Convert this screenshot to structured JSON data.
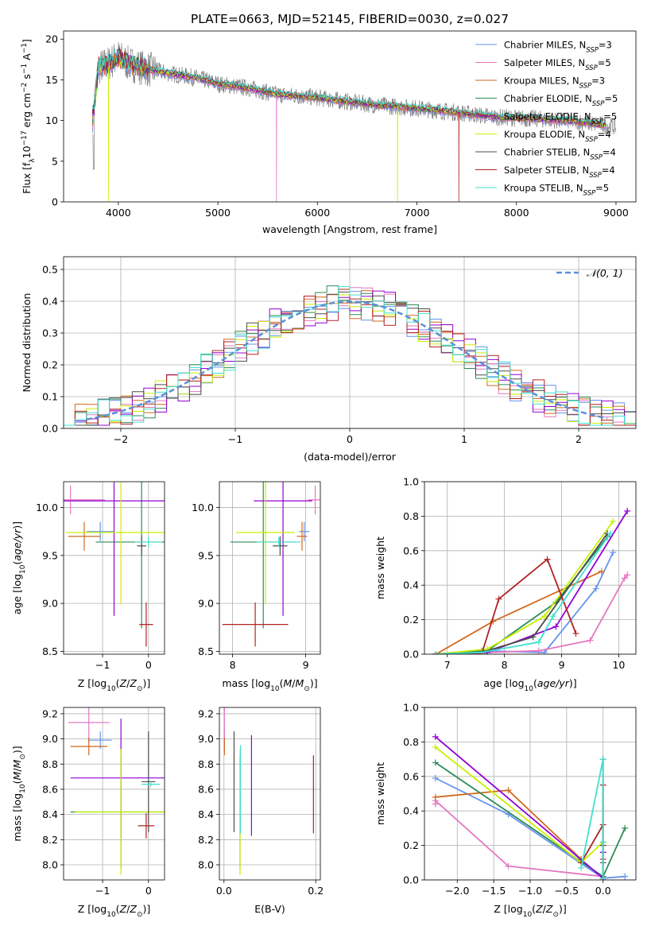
{
  "colors": {
    "chabrier_miles": "#6495ed",
    "salpeter_miles": "#e377c2",
    "kroupa_miles": "#d2691e",
    "chabrier_elodie": "#2e8b57",
    "salpeter_elodie": "#9400d3",
    "kroupa_elodie": "#c8f000",
    "chabrier_stelib": "#4d4d4d",
    "salpeter_stelib": "#b22222",
    "kroupa_stelib": "#40e0d0",
    "data_line": "#808080",
    "normal_curve": "#5b8fd9"
  },
  "chart_data": [
    {
      "id": "spectrum",
      "type": "line",
      "title": "PLATE=0663, MJD=52145, FIBERID=0030, z=0.027",
      "xlabel": "wavelength [Angstrom, rest frame]",
      "ylabel": "Flux [f_λ10^-17 erg cm^-2 s^-1 A^-1]",
      "xlim": [
        3450,
        9200
      ],
      "ylim": [
        0,
        21
      ],
      "xticks": [
        4000,
        5000,
        6000,
        7000,
        8000,
        9000
      ],
      "yticks": [
        0,
        5,
        10,
        15,
        20
      ],
      "grid": false,
      "legend_position": "top-right",
      "legend": [
        {
          "label": "Chabrier MILES, N",
          "sub": "SSP",
          "val": "=3",
          "color": "#6495ed"
        },
        {
          "label": "Salpeter MILES, N",
          "sub": "SSP",
          "val": "=5",
          "color": "#e377c2"
        },
        {
          "label": "Kroupa MILES, N",
          "sub": "SSP",
          "val": "=3",
          "color": "#d2691e"
        },
        {
          "label": "Chabrier ELODIE, N",
          "sub": "SSP",
          "val": "=5",
          "color": "#2e8b57"
        },
        {
          "label": "Salpeter ELODIE, N",
          "sub": "SSP",
          "val": "=5",
          "color": "#9400d3"
        },
        {
          "label": "Kroupa ELODIE, N",
          "sub": "SSP",
          "val": "=4",
          "color": "#c8f000"
        },
        {
          "label": "Chabrier STELIB, N",
          "sub": "SSP",
          "val": "=4",
          "color": "#4d4d4d"
        },
        {
          "label": "Salpeter STELIB, N",
          "sub": "SSP",
          "val": "=4",
          "color": "#b22222"
        },
        {
          "label": "Kroupa STELIB, N",
          "sub": "SSP",
          "val": "=5",
          "color": "#40e0d0"
        }
      ],
      "continuum": {
        "x": [
          3740,
          3800,
          3900,
          4000,
          4100,
          4300,
          4500,
          4800,
          5000,
          5300,
          5600,
          6000,
          6300,
          6600,
          7000,
          7400,
          7800,
          8200,
          8600,
          8900,
          9000
        ],
        "y": [
          10,
          16.5,
          17,
          17.8,
          17,
          16.3,
          15.8,
          15.2,
          14.5,
          14,
          13.2,
          12.8,
          12.3,
          11.9,
          11.5,
          11,
          10.4,
          10.2,
          9.9,
          9.4,
          9.2
        ]
      }
    },
    {
      "id": "residuals",
      "type": "histogram",
      "xlabel": "(data-model)/error",
      "ylabel": "Normed distribution",
      "xlim": [
        -2.5,
        2.5
      ],
      "ylim": [
        0,
        0.54
      ],
      "xticks": [
        -2,
        -1,
        0,
        1,
        2
      ],
      "yticks": [
        0.0,
        0.1,
        0.2,
        0.3,
        0.4,
        0.5
      ],
      "grid": true,
      "bin_width": 0.1,
      "legend_position": "top-right",
      "legend": [
        {
          "label": "𝒩(0, 1)",
          "color": "#5b8fd9"
        }
      ]
    },
    {
      "id": "age_vs_Z",
      "type": "errorbar",
      "xlabel": "Z [log10(Z/Z⊙)]",
      "ylabel": "age [log10(age/yr)]",
      "xlim": [
        -1.85,
        0.35
      ],
      "ylim": [
        8.47,
        10.27
      ],
      "xticks": [
        -1,
        0
      ],
      "yticks": [
        8.5,
        9.0,
        9.5,
        10.0
      ],
      "grid": true,
      "points": [
        {
          "model": "chabrier_miles",
          "x": -1.05,
          "xerr": 0.3,
          "y": 9.75,
          "yerr": 0.1
        },
        {
          "model": "salpeter_miles",
          "x": -1.7,
          "xerr": 0.75,
          "y": 10.08,
          "yerr": 0.15
        },
        {
          "model": "kroupa_miles",
          "x": -1.4,
          "xerr": 0.35,
          "y": 9.7,
          "yerr": 0.15
        },
        {
          "model": "chabrier_elodie",
          "x": -0.15,
          "xerr": 1.0,
          "y": 9.64,
          "yerr": 0.9
        },
        {
          "model": "salpeter_elodie",
          "x": -0.75,
          "xerr": 1.3,
          "y": 10.07,
          "yerr": 1.2
        },
        {
          "model": "kroupa_elodie",
          "x": -0.6,
          "xerr": 1.2,
          "y": 9.74,
          "yerr": 0.75
        },
        {
          "model": "chabrier_stelib",
          "x": -0.15,
          "xerr": 0.1,
          "y": 9.6,
          "yerr": 0.1
        },
        {
          "model": "salpeter_stelib",
          "x": -0.05,
          "xerr": 0.15,
          "y": 8.78,
          "yerr": 0.23
        },
        {
          "model": "kroupa_stelib",
          "x": 0.0,
          "xerr": 0.3,
          "y": 9.64,
          "yerr": 0.05
        }
      ]
    },
    {
      "id": "age_vs_mass",
      "type": "errorbar",
      "xlabel": "mass [log10(M/M⊙)]",
      "ylabel": "",
      "xlim": [
        7.82,
        9.2
      ],
      "ylim": [
        8.47,
        10.27
      ],
      "xticks": [
        8,
        9
      ],
      "yticks": [
        8.5,
        9.0,
        9.5,
        10.0
      ],
      "grid": true,
      "points": [
        {
          "model": "chabrier_miles",
          "x": 8.98,
          "xerr": 0.07,
          "y": 9.75,
          "yerr": 0.1
        },
        {
          "model": "salpeter_miles",
          "x": 9.13,
          "xerr": 0.1,
          "y": 10.08,
          "yerr": 0.15
        },
        {
          "model": "kroupa_miles",
          "x": 8.95,
          "xerr": 0.07,
          "y": 9.7,
          "yerr": 0.15
        },
        {
          "model": "chabrier_elodie",
          "x": 8.42,
          "xerr": 0.45,
          "y": 9.64,
          "yerr": 0.9
        },
        {
          "model": "salpeter_elodie",
          "x": 8.69,
          "xerr": 0.4,
          "y": 10.07,
          "yerr": 1.2
        },
        {
          "model": "kroupa_elodie",
          "x": 8.45,
          "xerr": 0.4,
          "y": 9.74,
          "yerr": 0.75
        },
        {
          "model": "chabrier_stelib",
          "x": 8.65,
          "xerr": 0.1,
          "y": 9.6,
          "yerr": 0.1
        },
        {
          "model": "salpeter_stelib",
          "x": 8.31,
          "xerr": 0.45,
          "y": 8.78,
          "yerr": 0.23
        },
        {
          "model": "kroupa_stelib",
          "x": 8.63,
          "xerr": 0.3,
          "y": 9.64,
          "yerr": 0.05
        }
      ]
    },
    {
      "id": "weight_vs_age",
      "type": "line",
      "xlabel": "age [log10(age/yr)]",
      "ylabel": "mass weight",
      "xlim": [
        6.6,
        10.3
      ],
      "ylim": [
        0,
        1
      ],
      "xticks": [
        7,
        8,
        9,
        10
      ],
      "yticks": [
        0.0,
        0.2,
        0.4,
        0.6,
        0.8,
        1.0
      ],
      "grid": true,
      "series": [
        {
          "model": "chabrier_miles",
          "x": [
            6.8,
            7.6,
            8.7,
            9.6,
            9.9
          ],
          "y": [
            0.0,
            0.02,
            0.01,
            0.38,
            0.59
          ]
        },
        {
          "model": "salpeter_miles",
          "x": [
            6.8,
            7.7,
            8.6,
            9.5,
            10.1,
            10.15
          ],
          "y": [
            0.0,
            0.01,
            0.02,
            0.08,
            0.44,
            0.46
          ]
        },
        {
          "model": "kroupa_miles",
          "x": [
            6.8,
            7.8,
            9.7
          ],
          "y": [
            0.0,
            0.19,
            0.48
          ]
        },
        {
          "model": "chabrier_elodie",
          "x": [
            6.8,
            7.7,
            8.9,
            9.8
          ],
          "y": [
            0.0,
            0.02,
            0.3,
            0.68
          ]
        },
        {
          "model": "salpeter_elodie",
          "x": [
            6.8,
            7.7,
            8.9,
            10.15
          ],
          "y": [
            0.0,
            0.01,
            0.16,
            0.83
          ]
        },
        {
          "model": "kroupa_elodie",
          "x": [
            6.8,
            7.7,
            8.7,
            9.9
          ],
          "y": [
            0.0,
            0.03,
            0.22,
            0.77
          ]
        },
        {
          "model": "chabrier_stelib",
          "x": [
            6.8,
            7.6,
            8.5,
            9.8
          ],
          "y": [
            0.0,
            0.01,
            0.1,
            0.7
          ]
        },
        {
          "model": "salpeter_stelib",
          "x": [
            6.8,
            7.6,
            7.9,
            8.75,
            9.25
          ],
          "y": [
            0.0,
            0.0,
            0.32,
            0.55,
            0.12
          ]
        },
        {
          "model": "kroupa_stelib",
          "x": [
            6.8,
            7.6,
            8.6,
            8.85,
            9.85
          ],
          "y": [
            0.0,
            0.01,
            0.07,
            0.22,
            0.7
          ]
        }
      ]
    },
    {
      "id": "mass_vs_Z",
      "type": "errorbar",
      "xlabel": "Z [log10(Z/Z⊙)]",
      "ylabel": "mass [log10(M/M⊙)]",
      "xlim": [
        -1.85,
        0.35
      ],
      "ylim": [
        7.88,
        9.25
      ],
      "xticks": [
        -1,
        0
      ],
      "yticks": [
        8.0,
        8.2,
        8.4,
        8.6,
        8.8,
        9.0,
        9.2
      ],
      "grid": true,
      "points": [
        {
          "model": "chabrier_miles",
          "x": -1.05,
          "xerr": 0.25,
          "y": 8.99,
          "yerr": 0.07
        },
        {
          "model": "salpeter_miles",
          "x": -1.3,
          "xerr": 0.45,
          "y": 9.13,
          "yerr": 0.16
        },
        {
          "model": "kroupa_miles",
          "x": -1.3,
          "xerr": 0.4,
          "y": 8.94,
          "yerr": 0.07
        },
        {
          "model": "chabrier_elodie",
          "x": -0.6,
          "xerr": 1.1,
          "y": 8.42,
          "yerr": 0.45
        },
        {
          "model": "salpeter_elodie",
          "x": -0.6,
          "xerr": 1.1,
          "y": 8.69,
          "yerr": 0.47
        },
        {
          "model": "kroupa_elodie",
          "x": -0.6,
          "xerr": 1.0,
          "y": 8.42,
          "yerr": 0.5
        },
        {
          "model": "chabrier_stelib",
          "x": 0.0,
          "xerr": 0.15,
          "y": 8.66,
          "yerr": 0.4
        },
        {
          "model": "salpeter_stelib",
          "x": -0.05,
          "xerr": 0.18,
          "y": 8.31,
          "yerr": 0.1
        },
        {
          "model": "kroupa_stelib",
          "x": 0.05,
          "xerr": 0.2,
          "y": 8.64,
          "yerr": 0.02
        }
      ]
    },
    {
      "id": "mass_vs_ebv",
      "type": "errorbar",
      "xlabel": "E(B-V)",
      "ylabel": "",
      "xlim": [
        -0.01,
        0.21
      ],
      "ylim": [
        7.88,
        9.25
      ],
      "xticks": [
        0.0,
        0.2
      ],
      "yticks": [
        8.0,
        8.2,
        8.4,
        8.6,
        8.8,
        9.0,
        9.2
      ],
      "grid": true,
      "points": [
        {
          "model": "chabrier_miles",
          "x": 0.001,
          "xerr": 0,
          "y": 8.99,
          "yerr": 0.07
        },
        {
          "model": "salpeter_miles",
          "x": 0.001,
          "xerr": 0,
          "y": 9.13,
          "yerr": 0.16
        },
        {
          "model": "kroupa_miles",
          "x": 0.001,
          "xerr": 0,
          "y": 8.94,
          "yerr": 0.07
        },
        {
          "model": "chabrier_elodie",
          "x": 0.035,
          "xerr": 0,
          "y": 8.42,
          "yerr": 0.45
        },
        {
          "model": "salpeter_elodie",
          "x": 0.06,
          "xerr": 0,
          "y": 8.63,
          "yerr": 0.4
        },
        {
          "model": "kroupa_elodie",
          "x": 0.035,
          "xerr": 0,
          "y": 8.42,
          "yerr": 0.5
        },
        {
          "model": "chabrier_stelib",
          "x": 0.022,
          "xerr": 0,
          "y": 8.66,
          "yerr": 0.4
        },
        {
          "model": "salpeter_stelib",
          "x": 0.195,
          "xerr": 0,
          "y": 8.56,
          "yerr": 0.31
        },
        {
          "model": "kroupa_stelib",
          "x": 0.036,
          "xerr": 0,
          "y": 8.6,
          "yerr": 0.35
        }
      ]
    },
    {
      "id": "weight_vs_Z",
      "type": "line",
      "xlabel": "Z [log10(Z/Z⊙)]",
      "ylabel": "mass weight",
      "xlim": [
        -2.45,
        0.45
      ],
      "ylim": [
        0,
        1
      ],
      "xticks": [
        -2.0,
        -1.5,
        -1.0,
        -0.5,
        0.0
      ],
      "yticks": [
        0.0,
        0.2,
        0.4,
        0.6,
        0.8,
        1.0
      ],
      "grid": true,
      "series": [
        {
          "model": "chabrier_miles",
          "x": [
            -2.3,
            -1.3,
            0.0,
            0.3
          ],
          "y": [
            0.59,
            0.38,
            0.01,
            0.02
          ]
        },
        {
          "model": "salpeter_miles",
          "x": [
            -2.3,
            -2.3,
            -1.3,
            0.0
          ],
          "y": [
            0.44,
            0.46,
            0.08,
            0.02
          ]
        },
        {
          "model": "kroupa_miles",
          "x": [
            -2.3,
            -1.3,
            -0.3
          ],
          "y": [
            0.48,
            0.52,
            0.12
          ]
        },
        {
          "model": "chabrier_elodie",
          "x": [
            -2.3,
            0.0,
            0.3
          ],
          "y": [
            0.68,
            0.02,
            0.3
          ]
        },
        {
          "model": "salpeter_elodie",
          "x": [
            -2.3,
            0.0,
            0.0
          ],
          "y": [
            0.83,
            0.01,
            0.16
          ]
        },
        {
          "model": "kroupa_elodie",
          "x": [
            -2.3,
            -0.3,
            0.0
          ],
          "y": [
            0.77,
            0.1,
            0.22
          ]
        },
        {
          "model": "chabrier_stelib",
          "x": [
            0.0,
            0.0,
            0.0,
            0.0
          ],
          "y": [
            0.7,
            0.2,
            0.1,
            0.0
          ]
        },
        {
          "model": "salpeter_stelib",
          "x": [
            -0.3,
            0.0,
            0.0,
            0.0
          ],
          "y": [
            0.1,
            0.32,
            0.55,
            0.12
          ]
        },
        {
          "model": "kroupa_stelib",
          "x": [
            -0.3,
            0.0,
            0.0,
            0.0
          ],
          "y": [
            0.07,
            0.7,
            0.22,
            0.01
          ]
        }
      ]
    }
  ]
}
